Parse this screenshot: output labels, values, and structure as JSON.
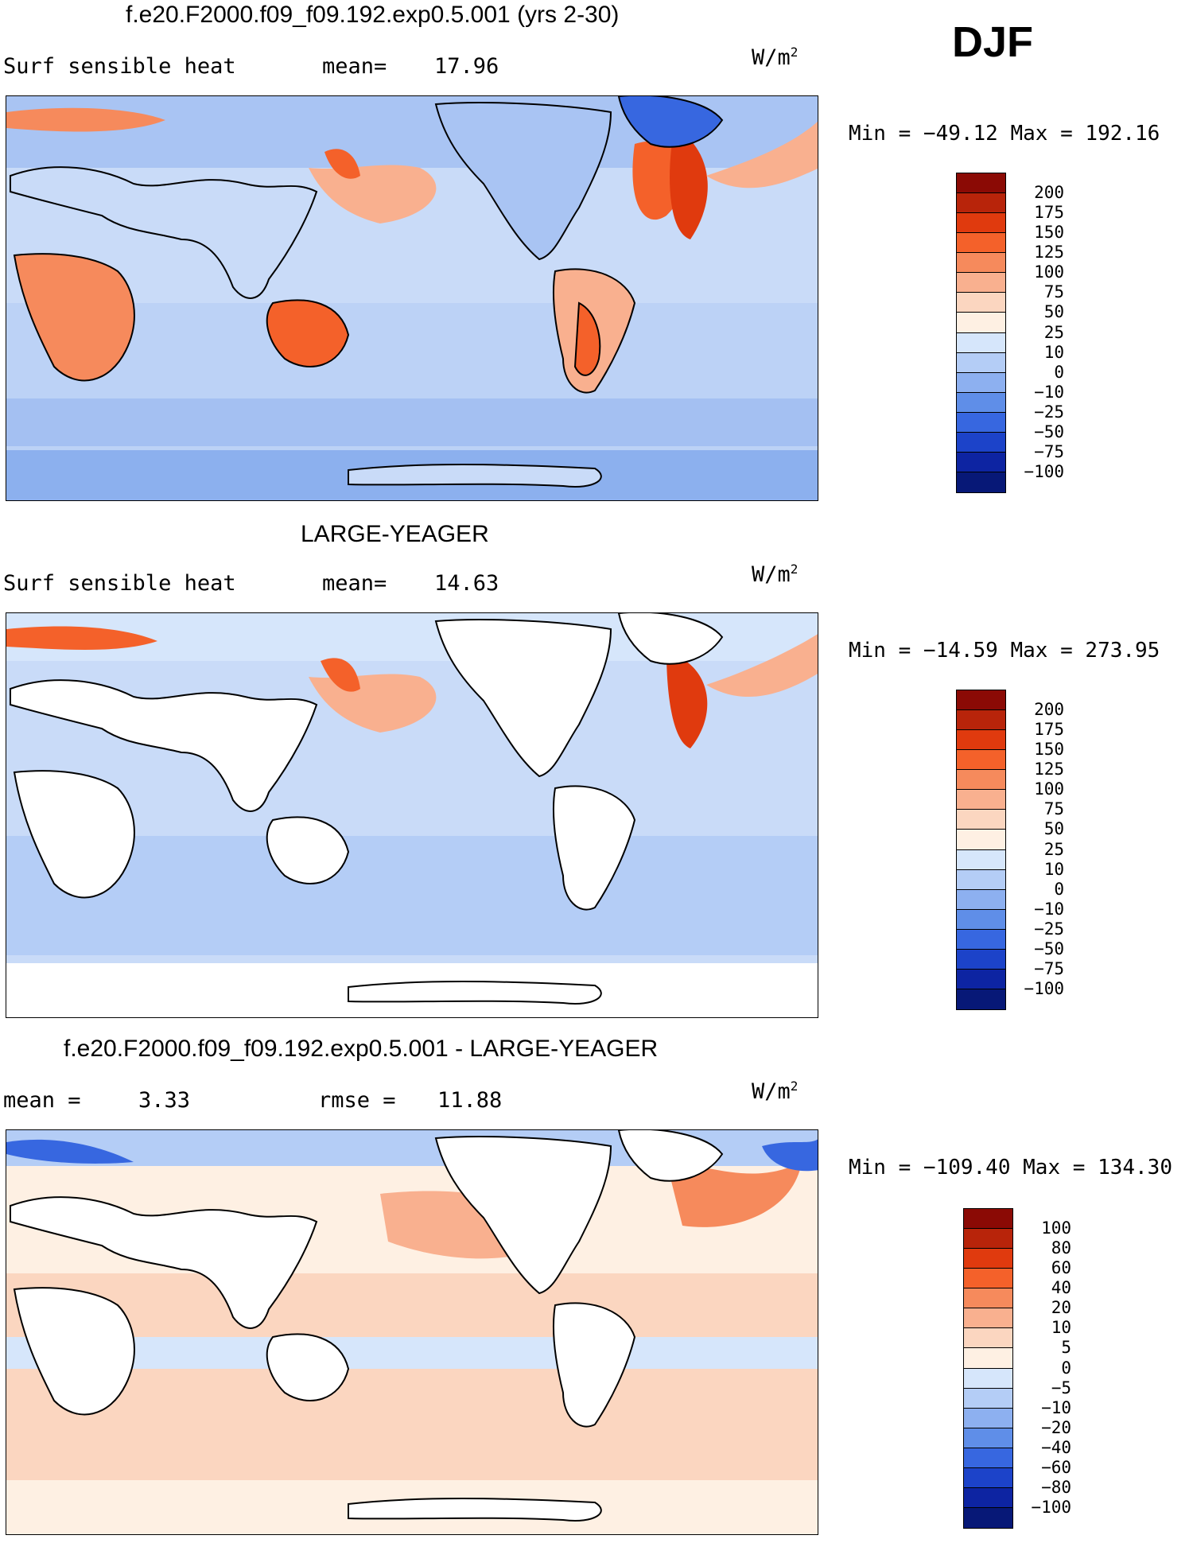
{
  "season": "DJF",
  "panels": [
    {
      "title": "f.e20.F2000.f09_f09.192.exp0.5.001 (yrs 2-30)",
      "left_label": "Surf sensible heat",
      "stat_label": "mean=",
      "stat_value": "17.96",
      "unit_base": "W/m",
      "unit_exp": "2",
      "minmax": "Min = −49.12 Max = 192.16",
      "colorbar": {
        "labels": [
          "200",
          "175",
          "150",
          "125",
          "100",
          "75",
          "50",
          "25",
          "10",
          "0",
          "−10",
          "−25",
          "−50",
          "−75",
          "−100"
        ],
        "colors": [
          "#8b0a05",
          "#b8240a",
          "#e03a0e",
          "#f4612a",
          "#f68a5c",
          "#f9b08f",
          "#fbd6c0",
          "#fef0e3",
          "#d6e6fb",
          "#b4cdf6",
          "#8db0f0",
          "#5f8ee8",
          "#3767e0",
          "#1c43c9",
          "#0d24a2",
          "#071877"
        ]
      }
    },
    {
      "title": "LARGE-YEAGER",
      "left_label": "Surf sensible heat",
      "stat_label": "mean=",
      "stat_value": "14.63",
      "unit_base": "W/m",
      "unit_exp": "2",
      "minmax": "Min = −14.59 Max = 273.95",
      "colorbar": {
        "labels": [
          "200",
          "175",
          "150",
          "125",
          "100",
          "75",
          "50",
          "25",
          "10",
          "0",
          "−10",
          "−25",
          "−50",
          "−75",
          "−100"
        ],
        "colors": [
          "#8b0a05",
          "#b8240a",
          "#e03a0e",
          "#f4612a",
          "#f68a5c",
          "#f9b08f",
          "#fbd6c0",
          "#fef0e3",
          "#d6e6fb",
          "#b4cdf6",
          "#8db0f0",
          "#5f8ee8",
          "#3767e0",
          "#1c43c9",
          "#0d24a2",
          "#071877"
        ]
      }
    },
    {
      "title": "f.e20.F2000.f09_f09.192.exp0.5.001 - LARGE-YEAGER",
      "left_label": "mean =",
      "left_value": "3.33",
      "stat_label": "rmse =",
      "stat_value": "11.88",
      "unit_base": "W/m",
      "unit_exp": "2",
      "minmax": "Min = −109.40 Max = 134.30",
      "colorbar": {
        "labels": [
          "100",
          "80",
          "60",
          "40",
          "20",
          "10",
          "5",
          "0",
          "−5",
          "−10",
          "−20",
          "−40",
          "−60",
          "−80",
          "−100"
        ],
        "colors": [
          "#8b0a05",
          "#b8240a",
          "#e03a0e",
          "#f4612a",
          "#f68a5c",
          "#f9b08f",
          "#fbd6c0",
          "#fef0e3",
          "#d6e6fb",
          "#b4cdf6",
          "#8db0f0",
          "#5f8ee8",
          "#3767e0",
          "#1c43c9",
          "#0d24a2",
          "#071877"
        ]
      }
    }
  ]
}
